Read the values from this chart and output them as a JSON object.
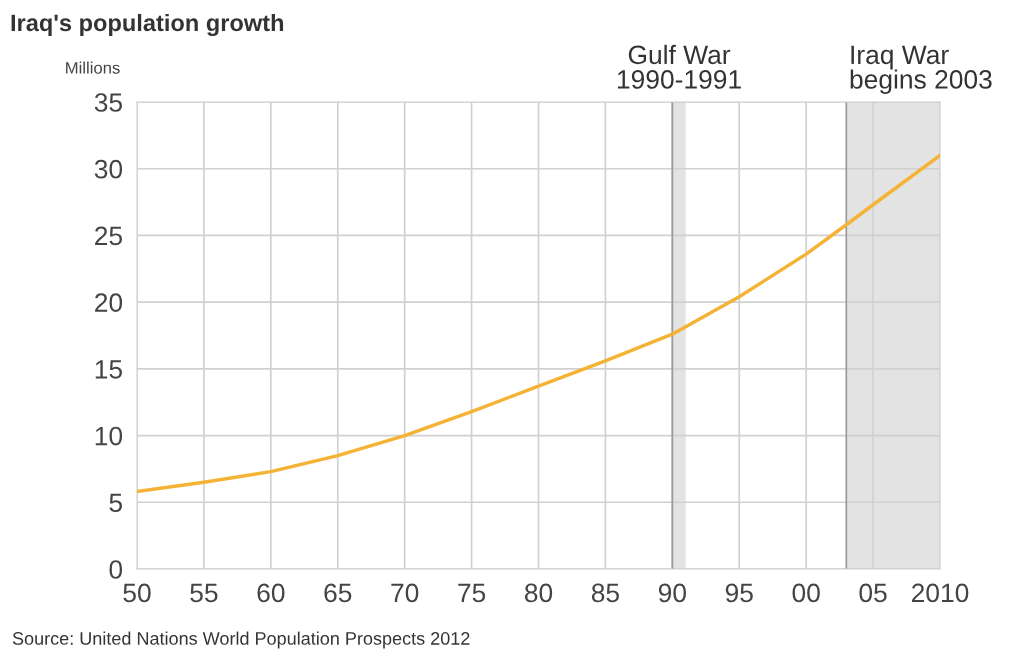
{
  "chart_data": {
    "type": "line",
    "title": "Iraq's population growth",
    "ylabel": "Millions",
    "x": [
      1950,
      1955,
      1960,
      1965,
      1970,
      1975,
      1980,
      1985,
      1990,
      1995,
      2000,
      2003,
      2005,
      2010
    ],
    "series": [
      {
        "color": "#f5b335",
        "values": [
          5.8,
          6.5,
          7.3,
          8.5,
          10.0,
          11.8,
          13.7,
          15.6,
          17.6,
          20.4,
          23.6,
          25.8,
          27.3,
          31.0
        ]
      }
    ],
    "xlim": [
      1950,
      2010
    ],
    "xticks": [
      {
        "value": 1950,
        "label": "50"
      },
      {
        "value": 1955,
        "label": "55"
      },
      {
        "value": 1960,
        "label": "60"
      },
      {
        "value": 1965,
        "label": "65"
      },
      {
        "value": 1970,
        "label": "70"
      },
      {
        "value": 1975,
        "label": "75"
      },
      {
        "value": 1980,
        "label": "80"
      },
      {
        "value": 1985,
        "label": "85"
      },
      {
        "value": 1990,
        "label": "90"
      },
      {
        "value": 1995,
        "label": "95"
      },
      {
        "value": 2000,
        "label": "00"
      },
      {
        "value": 2005,
        "label": "05"
      },
      2010
    ],
    "ylim": [
      0,
      35
    ],
    "yticks": [
      0,
      5,
      10,
      15,
      20,
      25,
      30,
      35
    ],
    "bands": [
      {
        "axis": "x",
        "from": 1990,
        "to": 1991,
        "label": "Gulf War\n1990-1991",
        "color": "#e3e3e3"
      },
      {
        "axis": "x",
        "from": 2003,
        "to": 2010,
        "label": "Iraq War\nbegins 2003",
        "color": "#e3e3e3"
      }
    ],
    "ref_lines": [
      {
        "axis": "x",
        "value": 1990,
        "color": "#999999"
      },
      {
        "axis": "x",
        "value": 2003,
        "color": "#999999"
      }
    ],
    "grid": true,
    "legend": false,
    "annotations": [
      "Source: United Nations World Population Prospects 2012"
    ]
  }
}
